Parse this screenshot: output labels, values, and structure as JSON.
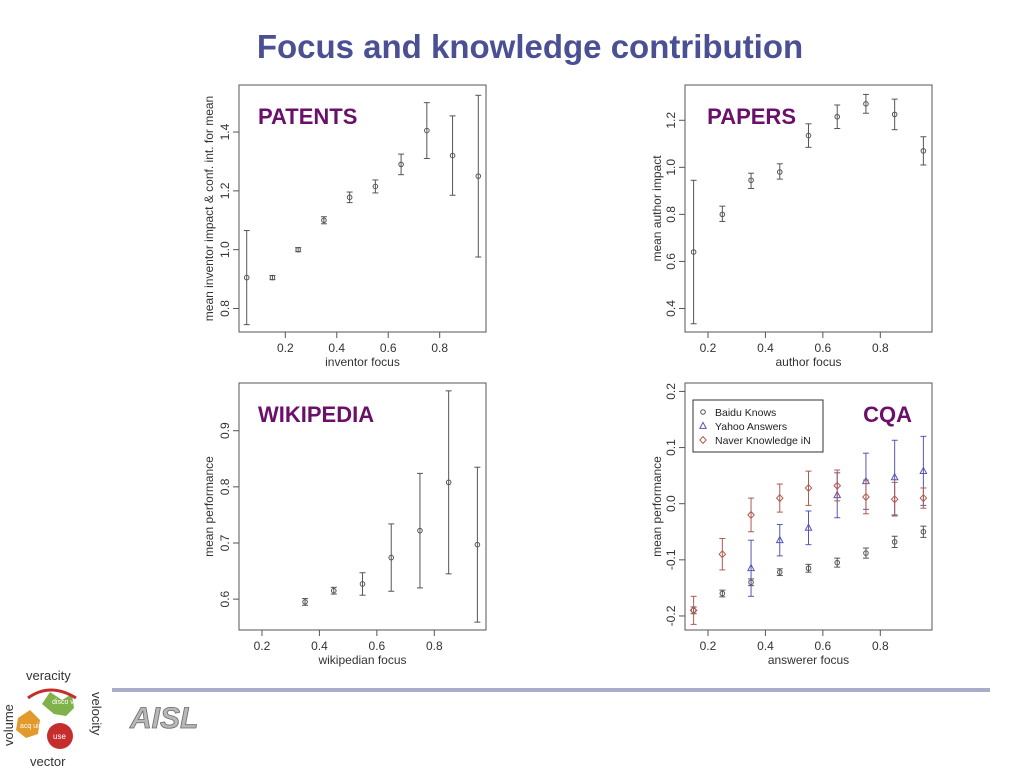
{
  "page_title": "Focus and knowledge contribution",
  "brand": "AISL",
  "wheel": {
    "top": "veracity",
    "left": "volume",
    "right": "velocity",
    "bottom": "vector",
    "petal_discover": "disco ver",
    "petal_acquire": "acq uire",
    "petal_use": "use"
  },
  "colors": {
    "title": "#4b4f93",
    "panel_label": "#6a0f6a",
    "baidu": "#555555",
    "yahoo": "#5656b8",
    "naver": "#b05a50"
  },
  "chart_data": [
    {
      "type": "scatter",
      "label": "PATENTS",
      "xlabel": "inventor focus",
      "ylabel": "mean inventor impact & conf. int. for mean",
      "xlim": [
        0.02,
        0.98
      ],
      "ylim": [
        0.72,
        1.56
      ],
      "xticks": [
        0.2,
        0.4,
        0.6,
        0.8
      ],
      "xtick_labels": [
        "0.2",
        "0.4",
        "0.6",
        "0.8"
      ],
      "yticks": [
        0.8,
        1.0,
        1.2,
        1.4
      ],
      "ytick_labels": [
        "0.8",
        "1.0",
        "1.2",
        "1.4"
      ],
      "series": [
        {
          "points": [
            {
              "x": 0.05,
              "y": 0.905,
              "lo": 0.745,
              "hi": 1.065
            },
            {
              "x": 0.15,
              "y": 0.905,
              "lo": 0.898,
              "hi": 0.912
            },
            {
              "x": 0.25,
              "y": 1.0,
              "lo": 0.993,
              "hi": 1.007
            },
            {
              "x": 0.35,
              "y": 1.1,
              "lo": 1.088,
              "hi": 1.112
            },
            {
              "x": 0.45,
              "y": 1.178,
              "lo": 1.16,
              "hi": 1.196
            },
            {
              "x": 0.55,
              "y": 1.215,
              "lo": 1.193,
              "hi": 1.237
            },
            {
              "x": 0.65,
              "y": 1.29,
              "lo": 1.255,
              "hi": 1.325
            },
            {
              "x": 0.75,
              "y": 1.405,
              "lo": 1.31,
              "hi": 1.5
            },
            {
              "x": 0.85,
              "y": 1.32,
              "lo": 1.185,
              "hi": 1.455
            },
            {
              "x": 0.95,
              "y": 1.25,
              "lo": 0.975,
              "hi": 1.525
            }
          ]
        }
      ]
    },
    {
      "type": "scatter",
      "label": "PAPERS",
      "xlabel": "author focus",
      "ylabel": "mean author impact",
      "xlim": [
        0.12,
        0.98
      ],
      "ylim": [
        0.3,
        1.35
      ],
      "xticks": [
        0.2,
        0.4,
        0.6,
        0.8
      ],
      "xtick_labels": [
        "0.2",
        "0.4",
        "0.6",
        "0.8"
      ],
      "yticks": [
        0.4,
        0.6,
        0.8,
        1.0,
        1.2
      ],
      "ytick_labels": [
        "0.4",
        "0.6",
        "0.8",
        "1.0",
        "1.2"
      ],
      "series": [
        {
          "points": [
            {
              "x": 0.15,
              "y": 0.64,
              "lo": 0.335,
              "hi": 0.945
            },
            {
              "x": 0.25,
              "y": 0.8,
              "lo": 0.77,
              "hi": 0.835
            },
            {
              "x": 0.35,
              "y": 0.945,
              "lo": 0.91,
              "hi": 0.975
            },
            {
              "x": 0.45,
              "y": 0.98,
              "lo": 0.95,
              "hi": 1.015
            },
            {
              "x": 0.55,
              "y": 1.135,
              "lo": 1.085,
              "hi": 1.185
            },
            {
              "x": 0.65,
              "y": 1.215,
              "lo": 1.165,
              "hi": 1.265
            },
            {
              "x": 0.75,
              "y": 1.27,
              "lo": 1.23,
              "hi": 1.31
            },
            {
              "x": 0.85,
              "y": 1.225,
              "lo": 1.16,
              "hi": 1.29
            },
            {
              "x": 0.95,
              "y": 1.07,
              "lo": 1.01,
              "hi": 1.13
            }
          ]
        }
      ]
    },
    {
      "type": "scatter",
      "label": "WIKIPEDIA",
      "xlabel": "wikipedian focus",
      "ylabel": "mean performance",
      "xlim": [
        0.12,
        0.98
      ],
      "ylim": [
        0.545,
        0.985
      ],
      "xticks": [
        0.2,
        0.4,
        0.6,
        0.8
      ],
      "xtick_labels": [
        "0.2",
        "0.4",
        "0.6",
        "0.8"
      ],
      "yticks": [
        0.6,
        0.7,
        0.8,
        0.9
      ],
      "ytick_labels": [
        "0.6",
        "0.7",
        "0.8",
        "0.9"
      ],
      "series": [
        {
          "points": [
            {
              "x": 0.35,
              "y": 0.595,
              "lo": 0.589,
              "hi": 0.601
            },
            {
              "x": 0.45,
              "y": 0.615,
              "lo": 0.609,
              "hi": 0.621
            },
            {
              "x": 0.55,
              "y": 0.627,
              "lo": 0.607,
              "hi": 0.647
            },
            {
              "x": 0.65,
              "y": 0.674,
              "lo": 0.614,
              "hi": 0.734
            },
            {
              "x": 0.75,
              "y": 0.722,
              "lo": 0.62,
              "hi": 0.824
            },
            {
              "x": 0.85,
              "y": 0.808,
              "lo": 0.645,
              "hi": 0.971
            },
            {
              "x": 0.95,
              "y": 0.697,
              "lo": 0.559,
              "hi": 0.835
            }
          ]
        }
      ]
    },
    {
      "type": "scatter",
      "label": "CQA",
      "xlabel": "answerer focus",
      "ylabel": "mean performance",
      "xlim": [
        0.12,
        0.98
      ],
      "ylim": [
        -0.225,
        0.215
      ],
      "xticks": [
        0.2,
        0.4,
        0.6,
        0.8
      ],
      "xtick_labels": [
        "0.2",
        "0.4",
        "0.6",
        "0.8"
      ],
      "yticks": [
        -0.2,
        -0.1,
        0.0,
        0.1,
        0.2
      ],
      "ytick_labels": [
        "-0.2",
        "-0.1",
        "0.0",
        "0.1",
        "0.2"
      ],
      "legend_position": "top-left",
      "series": [
        {
          "name": "Baidu Knows",
          "marker": "circle",
          "color": "#555555",
          "points": [
            {
              "x": 0.15,
              "y": -0.19,
              "lo": -0.196,
              "hi": -0.184
            },
            {
              "x": 0.25,
              "y": -0.16,
              "lo": -0.166,
              "hi": -0.154
            },
            {
              "x": 0.35,
              "y": -0.14,
              "lo": -0.146,
              "hi": -0.134
            },
            {
              "x": 0.45,
              "y": -0.122,
              "lo": -0.128,
              "hi": -0.116
            },
            {
              "x": 0.55,
              "y": -0.115,
              "lo": -0.122,
              "hi": -0.108
            },
            {
              "x": 0.65,
              "y": -0.105,
              "lo": -0.113,
              "hi": -0.097
            },
            {
              "x": 0.75,
              "y": -0.088,
              "lo": -0.097,
              "hi": -0.079
            },
            {
              "x": 0.85,
              "y": -0.068,
              "lo": -0.078,
              "hi": -0.058
            },
            {
              "x": 0.95,
              "y": -0.05,
              "lo": -0.06,
              "hi": -0.04
            }
          ]
        },
        {
          "name": "Yahoo Answers",
          "marker": "triangle",
          "color": "#5656b8",
          "points": [
            {
              "x": 0.35,
              "y": -0.115,
              "lo": -0.165,
              "hi": -0.065
            },
            {
              "x": 0.45,
              "y": -0.065,
              "lo": -0.093,
              "hi": -0.037
            },
            {
              "x": 0.55,
              "y": -0.043,
              "lo": -0.073,
              "hi": -0.013
            },
            {
              "x": 0.65,
              "y": 0.015,
              "lo": -0.025,
              "hi": 0.055
            },
            {
              "x": 0.75,
              "y": 0.04,
              "lo": -0.01,
              "hi": 0.09
            },
            {
              "x": 0.85,
              "y": 0.047,
              "lo": -0.02,
              "hi": 0.113
            },
            {
              "x": 0.95,
              "y": 0.058,
              "lo": -0.003,
              "hi": 0.12
            }
          ]
        },
        {
          "name": "Naver Knowledge iN",
          "marker": "diamond",
          "color": "#b05a50",
          "points": [
            {
              "x": 0.15,
              "y": -0.19,
              "lo": -0.215,
              "hi": -0.165
            },
            {
              "x": 0.25,
              "y": -0.09,
              "lo": -0.118,
              "hi": -0.062
            },
            {
              "x": 0.35,
              "y": -0.02,
              "lo": -0.05,
              "hi": 0.01
            },
            {
              "x": 0.45,
              "y": 0.01,
              "lo": -0.015,
              "hi": 0.035
            },
            {
              "x": 0.55,
              "y": 0.028,
              "lo": -0.003,
              "hi": 0.058
            },
            {
              "x": 0.65,
              "y": 0.032,
              "lo": 0.005,
              "hi": 0.06
            },
            {
              "x": 0.75,
              "y": 0.012,
              "lo": -0.018,
              "hi": 0.042
            },
            {
              "x": 0.85,
              "y": 0.008,
              "lo": -0.022,
              "hi": 0.038
            },
            {
              "x": 0.95,
              "y": 0.01,
              "lo": -0.008,
              "hi": 0.028
            }
          ]
        }
      ]
    }
  ]
}
